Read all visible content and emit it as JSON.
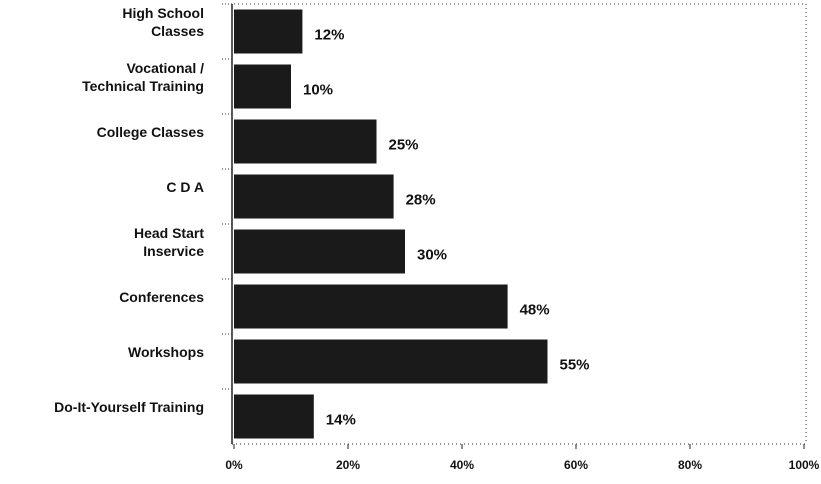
{
  "chart_data": {
    "type": "barh",
    "categories": [
      "High School\nClasses",
      "Vocational /\nTechnical Training",
      "College Classes",
      "C D A",
      "Head Start\nInservice",
      "Conferences",
      "Workshops",
      "Do-It-Yourself Training"
    ],
    "values": [
      12,
      10,
      25,
      28,
      30,
      48,
      55,
      14
    ],
    "value_labels": [
      "12%",
      "10%",
      "25%",
      "28%",
      "30%",
      "48%",
      "55%",
      "14%"
    ],
    "color": "#1a1a1a",
    "xlim": [
      0,
      100
    ],
    "xticks": [
      {
        "value": 0,
        "label": "0%"
      },
      {
        "value": 20,
        "label": "20%"
      },
      {
        "value": 40,
        "label": "40%"
      },
      {
        "value": 60,
        "label": "60%"
      },
      {
        "value": 80,
        "label": "80%"
      },
      {
        "value": 100,
        "label": "100%"
      }
    ]
  }
}
